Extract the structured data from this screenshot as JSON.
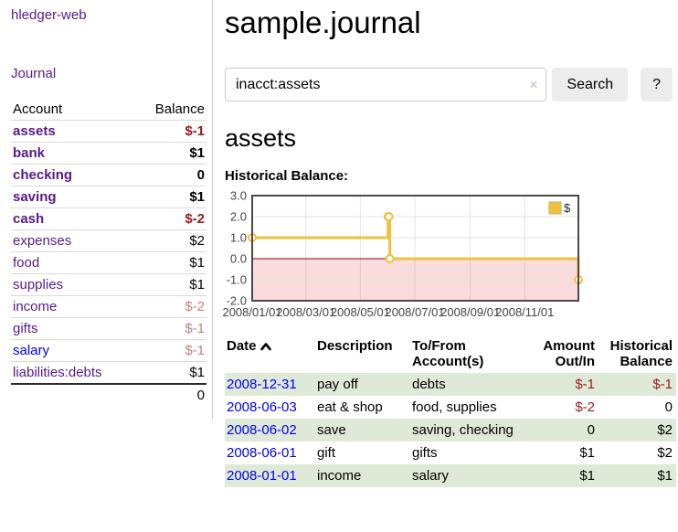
{
  "brand": "hledger-web",
  "sidebar": {
    "journal_link": "Journal",
    "accounts": {
      "account_header": "Account",
      "balance_header": "Balance",
      "rows": [
        {
          "name": "assets",
          "balance": "$-1",
          "indent": 1,
          "bold": true,
          "balance_tone": "neg-strong",
          "link_tone": "purple"
        },
        {
          "name": "bank",
          "balance": "$1",
          "indent": 2,
          "bold": true,
          "balance_tone": "normal",
          "link_tone": "purple"
        },
        {
          "name": "checking",
          "balance": "0",
          "indent": 3,
          "bold": true,
          "balance_tone": "normal",
          "link_tone": "purple"
        },
        {
          "name": "saving",
          "balance": "$1",
          "indent": 3,
          "bold": true,
          "balance_tone": "normal",
          "link_tone": "purple"
        },
        {
          "name": "cash",
          "balance": "$-2",
          "indent": 2,
          "bold": true,
          "balance_tone": "neg-strong",
          "link_tone": "purple"
        },
        {
          "name": "expenses",
          "balance": "$2",
          "indent": 1,
          "bold": false,
          "balance_tone": "normal",
          "link_tone": "purple"
        },
        {
          "name": "food",
          "balance": "$1",
          "indent": 2,
          "bold": false,
          "balance_tone": "normal",
          "link_tone": "purple"
        },
        {
          "name": "supplies",
          "balance": "$1",
          "indent": 2,
          "bold": false,
          "balance_tone": "normal",
          "link_tone": "purple"
        },
        {
          "name": "income",
          "balance": "$-2",
          "indent": 1,
          "bold": false,
          "balance_tone": "neg-soft",
          "link_tone": "purple"
        },
        {
          "name": "gifts",
          "balance": "$-1",
          "indent": 2,
          "bold": false,
          "balance_tone": "neg-soft",
          "link_tone": "purple"
        },
        {
          "name": "salary",
          "balance": "$-1",
          "indent": 2,
          "bold": false,
          "balance_tone": "neg-soft",
          "link_tone": "blue"
        },
        {
          "name": "liabilities:debts",
          "balance": "$1",
          "indent": 1,
          "bold": false,
          "balance_tone": "normal",
          "link_tone": "purple"
        }
      ],
      "total": "0"
    }
  },
  "main": {
    "title": "sample.journal",
    "search": {
      "value": "inacct:assets",
      "clear_icon": "×",
      "search_button": "Search",
      "help_button": "?"
    },
    "account_heading": "assets",
    "chart_heading": "Historical Balance:"
  },
  "chart_data": {
    "type": "line",
    "title": "Historical Balance:",
    "series": [
      {
        "name": "$",
        "color": "#edc240",
        "step": true,
        "points": [
          [
            "2008-01-01",
            1
          ],
          [
            "2008-06-01",
            2
          ],
          [
            "2008-06-02",
            2
          ],
          [
            "2008-06-03",
            0
          ],
          [
            "2008-12-31",
            -1
          ]
        ]
      }
    ],
    "x_range": [
      "2008-01-01",
      "2008-12-31"
    ],
    "y_range": [
      -2,
      3
    ],
    "y_ticks": [
      3,
      2,
      1,
      0,
      -1,
      -2
    ],
    "x_ticks": [
      {
        "date": "2008-01-01",
        "label": "2008/01/01"
      },
      {
        "date": "2008-03-01",
        "label": "2008/03/01"
      },
      {
        "date": "2008-05-01",
        "label": "2008/05/01"
      },
      {
        "date": "2008-07-01",
        "label": "2008/07/01"
      },
      {
        "date": "2008-09-01",
        "label": "2008/09/01"
      },
      {
        "date": "2008-11-01",
        "label": "2008/11/01"
      }
    ],
    "legend": {
      "position": "top-right",
      "label": "$"
    },
    "grid": true,
    "zero_line_color": "#8b0000",
    "below_zero_fill": "#fbdcdc",
    "plot_border_color": "#4a4a4a",
    "grid_color": "#e3e3e3"
  },
  "register": {
    "headers": {
      "date": "Date",
      "description": "Description",
      "accounts": "To/From Account(s)",
      "amount": "Amount Out/In",
      "balance": "Historical Balance"
    },
    "rows": [
      {
        "date": "2008-12-31",
        "description": "pay off",
        "accounts": "debts",
        "amount": "$-1",
        "amount_neg": true,
        "balance": "$-1",
        "balance_neg": true
      },
      {
        "date": "2008-06-03",
        "description": "eat & shop",
        "accounts": "food, supplies",
        "amount": "$-2",
        "amount_neg": true,
        "balance": "0",
        "balance_neg": false
      },
      {
        "date": "2008-06-02",
        "description": "save",
        "accounts": "saving, checking",
        "amount": "0",
        "amount_neg": false,
        "balance": "$2",
        "balance_neg": false
      },
      {
        "date": "2008-06-01",
        "description": "gift",
        "accounts": "gifts",
        "amount": "$1",
        "amount_neg": false,
        "balance": "$2",
        "balance_neg": false
      },
      {
        "date": "2008-01-01",
        "description": "income",
        "accounts": "salary",
        "amount": "$1",
        "amount_neg": false,
        "balance": "$1",
        "balance_neg": false
      }
    ]
  },
  "colors": {
    "link_visited_purple": "#551a8b",
    "link_blue": "#0000ee",
    "negative_strong": "#9b1a1a",
    "negative_soft": "#c08181",
    "row_green": "#dfe9d7",
    "series_gold": "#edc240",
    "button_gray": "#ececec"
  }
}
